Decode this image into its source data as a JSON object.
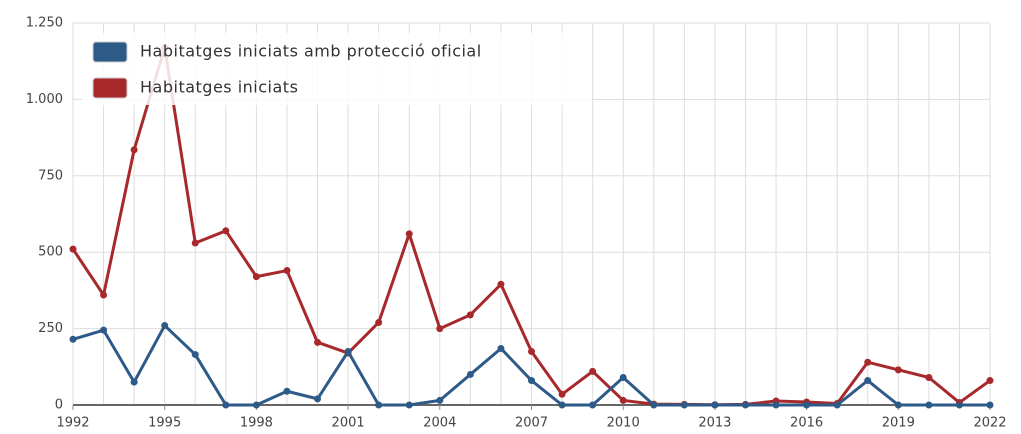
{
  "chart_data": {
    "type": "line",
    "x": [
      1992,
      1993,
      1994,
      1995,
      1996,
      1997,
      1998,
      1999,
      2000,
      2001,
      2002,
      2003,
      2004,
      2005,
      2006,
      2007,
      2008,
      2009,
      2010,
      2011,
      2012,
      2013,
      2014,
      2015,
      2016,
      2017,
      2018,
      2019,
      2020,
      2021,
      2022
    ],
    "series": [
      {
        "name": "Habitatges iniciats amb protecció oficial",
        "color": "#2e5a88",
        "values": [
          215,
          245,
          75,
          260,
          165,
          0,
          0,
          45,
          20,
          175,
          0,
          0,
          15,
          100,
          185,
          80,
          0,
          0,
          90,
          0,
          0,
          0,
          0,
          0,
          0,
          0,
          80,
          0,
          0,
          0,
          0
        ]
      },
      {
        "name": "Habitatges iniciats",
        "color": "#a8292c",
        "values": [
          510,
          360,
          835,
          1170,
          530,
          570,
          420,
          440,
          205,
          170,
          270,
          560,
          250,
          295,
          395,
          175,
          35,
          110,
          15,
          3,
          2,
          1,
          2,
          13,
          10,
          5,
          140,
          115,
          90,
          8,
          80
        ]
      }
    ],
    "xlim": [
      1992,
      2022
    ],
    "xticks": [
      1992,
      1995,
      1998,
      2001,
      2004,
      2007,
      2010,
      2013,
      2016,
      2019,
      2022
    ],
    "ylim": [
      0,
      1250
    ],
    "yticks": [
      0,
      250,
      500,
      750,
      {
        "value": 1000,
        "label": "1.000"
      },
      {
        "value": 1250,
        "label": "1.250"
      }
    ],
    "grid": true,
    "legend": "top-left"
  }
}
